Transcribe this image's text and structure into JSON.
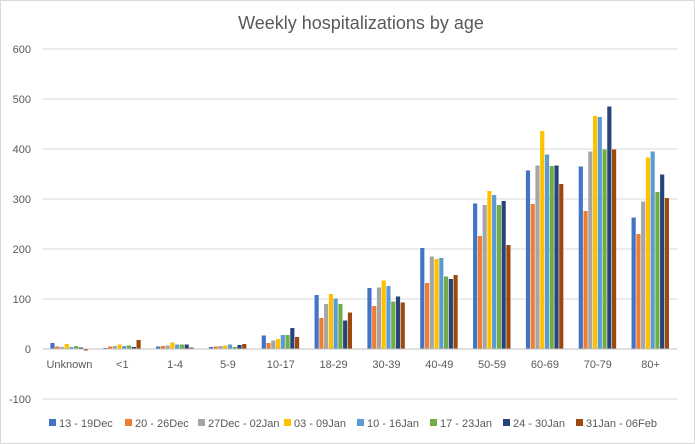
{
  "chart_data": {
    "type": "bar",
    "title": "Weekly hospitalizations by age",
    "xlabel": "",
    "ylabel": "",
    "ylim": [
      -100,
      600
    ],
    "yticks": [
      -100,
      0,
      100,
      200,
      300,
      400,
      500,
      600
    ],
    "grid": true,
    "legend_position": "bottom",
    "categories": [
      "Unknown",
      "<1",
      "1-4",
      "5-9",
      "10-17",
      "18-29",
      "30-39",
      "40-49",
      "50-59",
      "60-69",
      "70-79",
      "80+"
    ],
    "series": [
      {
        "name": "13 - 19Dec",
        "color": "#4472C4",
        "values": [
          12,
          2,
          5,
          4,
          27,
          108,
          122,
          202,
          291,
          357,
          365,
          263
        ]
      },
      {
        "name": "20 - 26Dec",
        "color": "#ED7D31",
        "values": [
          5,
          5,
          6,
          5,
          12,
          62,
          86,
          132,
          226,
          290,
          276,
          230
        ]
      },
      {
        "name": "27Dec - 02Jan",
        "color": "#A5A5A5",
        "values": [
          4,
          6,
          7,
          6,
          17,
          90,
          123,
          185,
          288,
          367,
          395,
          295
        ]
      },
      {
        "name": "03 - 09Jan",
        "color": "#FFC000",
        "values": [
          10,
          9,
          13,
          7,
          20,
          110,
          137,
          180,
          316,
          436,
          466,
          383
        ]
      },
      {
        "name": "10 - 16Jan",
        "color": "#5B9BD5",
        "values": [
          4,
          6,
          9,
          9,
          28,
          101,
          126,
          182,
          308,
          389,
          464,
          395
        ]
      },
      {
        "name": "17 - 23Jan",
        "color": "#70AD47",
        "values": [
          6,
          7,
          9,
          4,
          28,
          90,
          95,
          145,
          288,
          366,
          399,
          314
        ]
      },
      {
        "name": "24 - 30Jan",
        "color": "#264478",
        "values": [
          3,
          4,
          9,
          8,
          42,
          57,
          105,
          140,
          296,
          367,
          485,
          349
        ]
      },
      {
        "name": "31Jan - 06Feb",
        "color": "#9E480E",
        "values": [
          -3,
          18,
          3,
          10,
          24,
          73,
          93,
          148,
          208,
          330,
          399,
          302
        ]
      }
    ]
  }
}
